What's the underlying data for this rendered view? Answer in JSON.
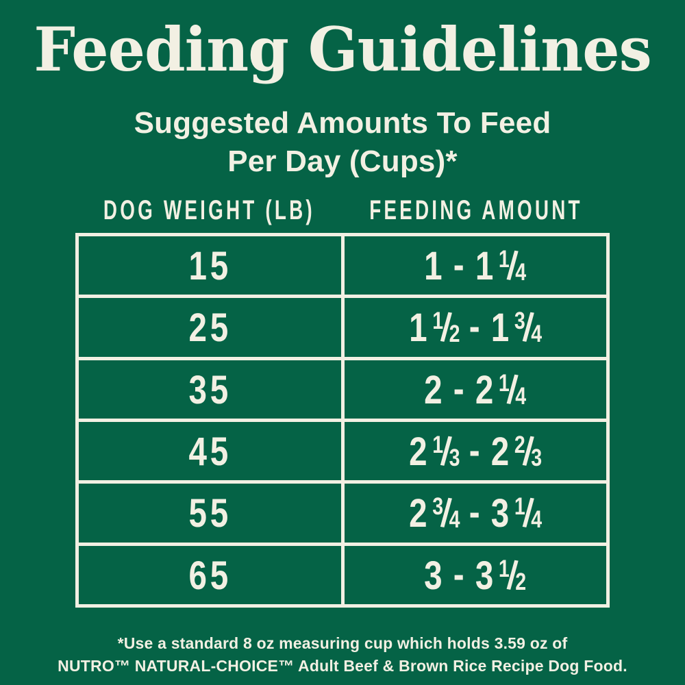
{
  "colors": {
    "background": "#056346",
    "ink": "#F2F0E3"
  },
  "header": {
    "title": "Feeding Guidelines",
    "subtitle_line1": "Suggested Amounts To Feed",
    "subtitle_line2": "Per Day (Cups)*"
  },
  "table": {
    "col1_header": "DOG WEIGHT (LB)",
    "col2_header": "FEEDING AMOUNT",
    "range_separator": "-",
    "rows": [
      {
        "weight": "15",
        "min": {
          "whole": "1"
        },
        "max": {
          "whole": "1",
          "num": "1",
          "den": "4"
        }
      },
      {
        "weight": "25",
        "min": {
          "whole": "1",
          "num": "1",
          "den": "2"
        },
        "max": {
          "whole": "1",
          "num": "3",
          "den": "4"
        }
      },
      {
        "weight": "35",
        "min": {
          "whole": "2"
        },
        "max": {
          "whole": "2",
          "num": "1",
          "den": "4"
        }
      },
      {
        "weight": "45",
        "min": {
          "whole": "2",
          "num": "1",
          "den": "3"
        },
        "max": {
          "whole": "2",
          "num": "2",
          "den": "3"
        }
      },
      {
        "weight": "55",
        "min": {
          "whole": "2",
          "num": "3",
          "den": "4"
        },
        "max": {
          "whole": "3",
          "num": "1",
          "den": "4"
        }
      },
      {
        "weight": "65",
        "min": {
          "whole": "3"
        },
        "max": {
          "whole": "3",
          "num": "1",
          "den": "2"
        }
      }
    ]
  },
  "footnote": {
    "line1": "*Use a standard 8 oz measuring cup which holds 3.59 oz of",
    "line2": "NUTRO™ NATURAL-CHOICE™ Adult Beef & Brown Rice Recipe Dog Food."
  },
  "chart_data": {
    "type": "table",
    "title": "Feeding Guidelines",
    "subtitle": "Suggested Amounts To Feed Per Day (Cups)*",
    "columns": [
      "Dog Weight (lb)",
      "Feeding Amount (cups per day)"
    ],
    "rows": [
      [
        "15",
        "1 - 1 1/4"
      ],
      [
        "25",
        "1 1/2 - 1 3/4"
      ],
      [
        "35",
        "2 - 2 1/4"
      ],
      [
        "45",
        "2 1/3 - 2 2/3"
      ],
      [
        "55",
        "2 3/4 - 3 1/4"
      ],
      [
        "65",
        "3 - 3 1/2"
      ]
    ],
    "footnote": "*Use a standard 8 oz measuring cup which holds 3.59 oz of NUTRO™ NATURAL-CHOICE™ Adult Beef & Brown Rice Recipe Dog Food."
  }
}
